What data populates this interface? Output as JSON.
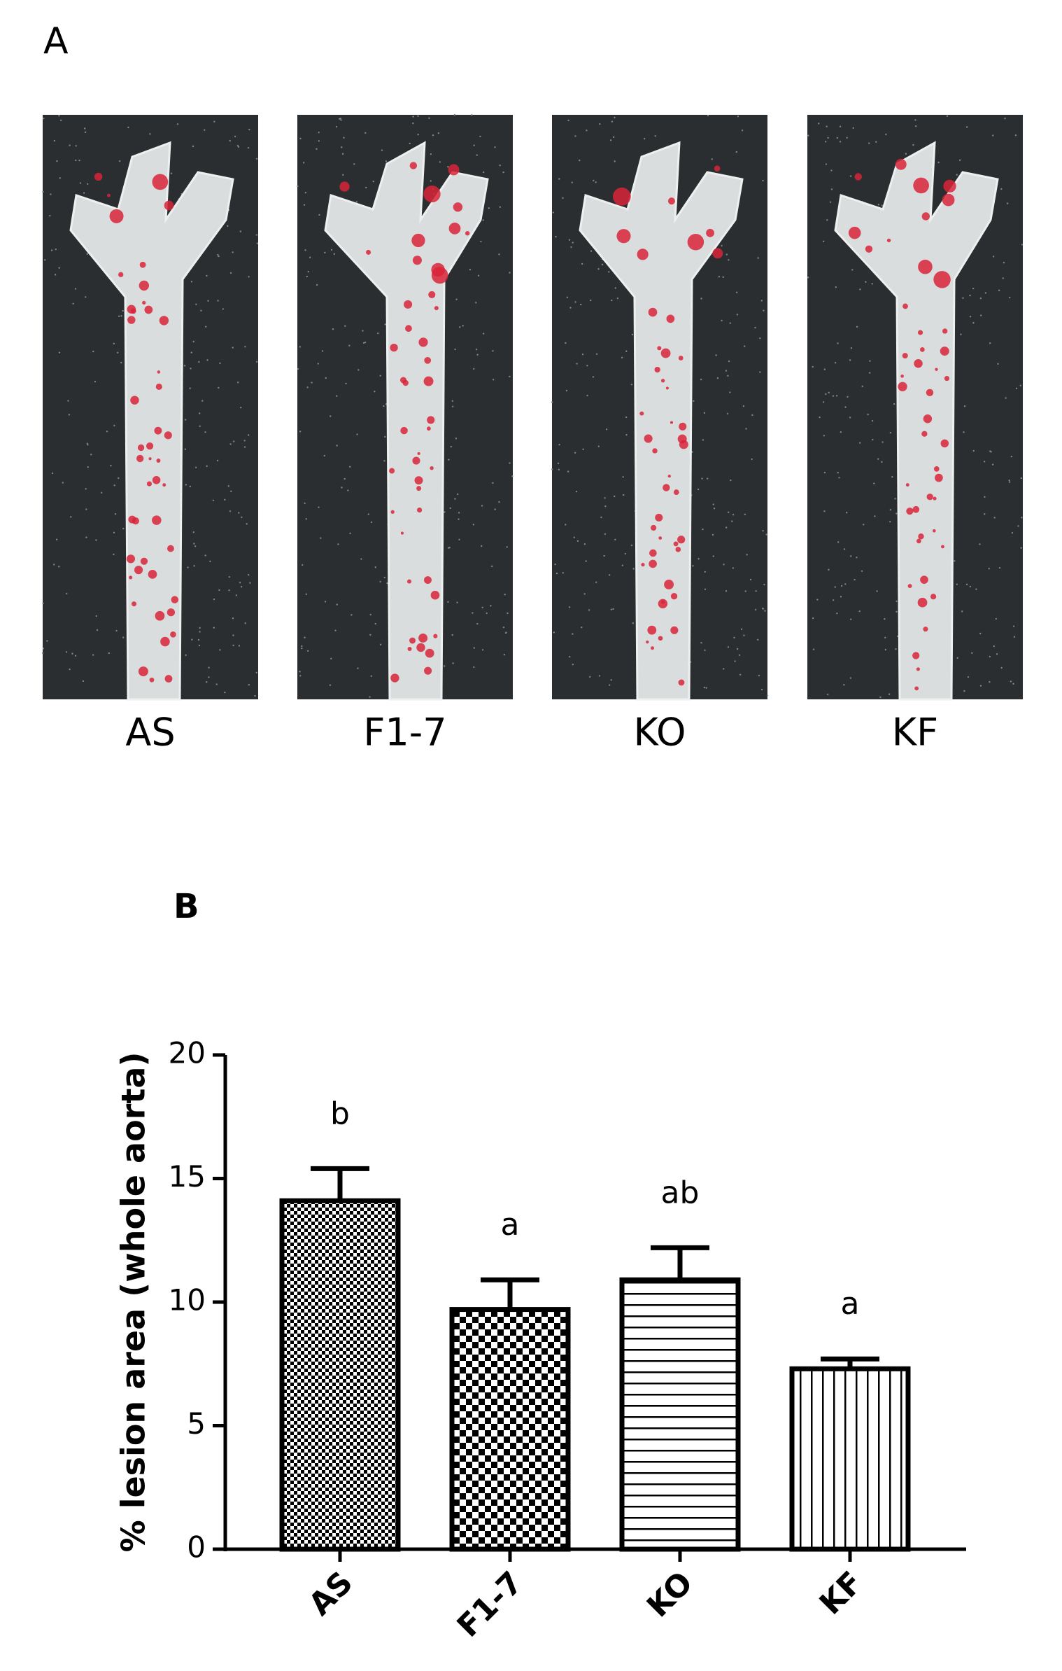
{
  "panel_a": {
    "label": "A",
    "samples": [
      "AS",
      "F1-7",
      "KO",
      "KF"
    ]
  },
  "panel_b": {
    "label": "B"
  },
  "chart_data": {
    "type": "bar",
    "ylabel": "% lesion area (whole aorta)",
    "categories": [
      "AS",
      "F1-7",
      "KO",
      "KF"
    ],
    "values": [
      14.1,
      9.7,
      10.9,
      7.3
    ],
    "errors": [
      1.3,
      1.2,
      1.3,
      0.4
    ],
    "annotations": [
      "b",
      "a",
      "ab",
      "a"
    ],
    "hatches": [
      "fine-checker",
      "checker",
      "horizontal",
      "vertical"
    ],
    "color": "#000000",
    "ylim": [
      0,
      20
    ],
    "yticks": [
      0,
      5,
      10,
      15,
      20
    ]
  }
}
